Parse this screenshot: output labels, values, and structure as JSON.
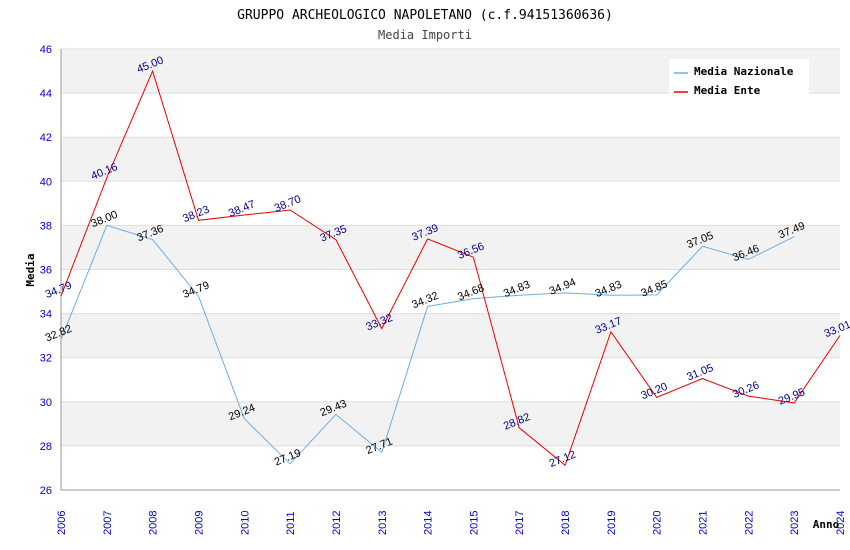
{
  "chart_data": {
    "type": "line",
    "title": "GRUPPO ARCHEOLOGICO NAPOLETANO (c.f.94151360636)",
    "subtitle": "Media Importi",
    "ylabel": "Media",
    "xlabel": "Anno",
    "ylim": [
      26,
      46
    ],
    "yticks": [
      26,
      28,
      30,
      32,
      34,
      36,
      38,
      40,
      42,
      44,
      46
    ],
    "categories": [
      "2006",
      "2007",
      "2008",
      "2009",
      "2010",
      "2011",
      "2012",
      "2013",
      "2014",
      "2015",
      "2017",
      "2018",
      "2019",
      "2020",
      "2021",
      "2022",
      "2023",
      "2024"
    ],
    "series": [
      {
        "name": "Media Nazionale",
        "color": "#6aaee8",
        "label_color": "#000000",
        "values": [
          32.82,
          38.0,
          37.36,
          34.79,
          29.24,
          27.19,
          29.43,
          27.71,
          34.32,
          34.68,
          34.83,
          34.94,
          34.83,
          34.85,
          37.05,
          36.46,
          37.49,
          null
        ],
        "labels": [
          "32.82",
          "38.00",
          "37.36",
          "34.79",
          "29.24",
          "27.19",
          "29.43",
          "27.71",
          "34.32",
          "34.68",
          "34.83",
          "34.94",
          "34.83",
          "34.85",
          "37.05",
          "36.46",
          "37.49",
          null
        ]
      },
      {
        "name": "Media Ente",
        "color": "#ee0000",
        "label_color": "#00008b",
        "values": [
          34.79,
          40.16,
          45.0,
          38.23,
          38.47,
          38.7,
          37.35,
          33.32,
          37.39,
          36.56,
          28.82,
          27.12,
          33.17,
          30.2,
          31.05,
          30.26,
          29.95,
          33.01
        ],
        "labels": [
          "34.79",
          "40.16",
          "45.00",
          "38.23",
          "38.47",
          "38.70",
          "37.35",
          "33.32",
          "37.39",
          "36.56",
          "28.82",
          "27.12",
          "33.17",
          "30.20",
          "31.05",
          "30.26",
          "29.95",
          "33.01"
        ]
      }
    ],
    "legend_position": "top-right",
    "grid": true
  }
}
